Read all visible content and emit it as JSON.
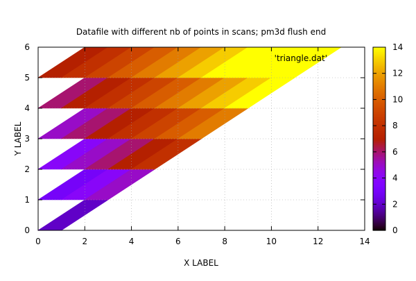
{
  "chart_data": {
    "type": "heatmap",
    "title": "Datafile with different nb of points in scans; pm3d flush end",
    "xlabel": "X LABEL",
    "ylabel": "Y LABEL",
    "xlim": [
      0,
      14
    ],
    "ylim": [
      0,
      6
    ],
    "xticks": [
      "0",
      "2",
      "4",
      "6",
      "8",
      "10",
      "12",
      "14"
    ],
    "yticks": [
      "0",
      "1",
      "2",
      "3",
      "4",
      "5",
      "6"
    ],
    "grid": true,
    "legend": {
      "label": "'triangle.dat'",
      "position": "top-right"
    },
    "colorbar": {
      "range": [
        0,
        14
      ],
      "ticks": [
        "0",
        "2",
        "4",
        "6",
        "8",
        "10",
        "12",
        "14"
      ],
      "palette": "gnuplot-default (black-blue-red-yellow)"
    },
    "scans": [
      {
        "y": 0,
        "x_start": 0,
        "points": 2
      },
      {
        "y": 1,
        "x_start": 0,
        "points": 4
      },
      {
        "y": 2,
        "x_start": 0,
        "points": 6
      },
      {
        "y": 3,
        "x_start": 0,
        "points": 8
      },
      {
        "y": 4,
        "x_start": 0,
        "points": 10
      },
      {
        "y": 5,
        "x_start": 0,
        "points": 12
      },
      {
        "y": 6,
        "x_start": 2,
        "points": 12
      }
    ],
    "color_value": "x + y",
    "note": "surface z value equals x + y over the triangular domain"
  }
}
